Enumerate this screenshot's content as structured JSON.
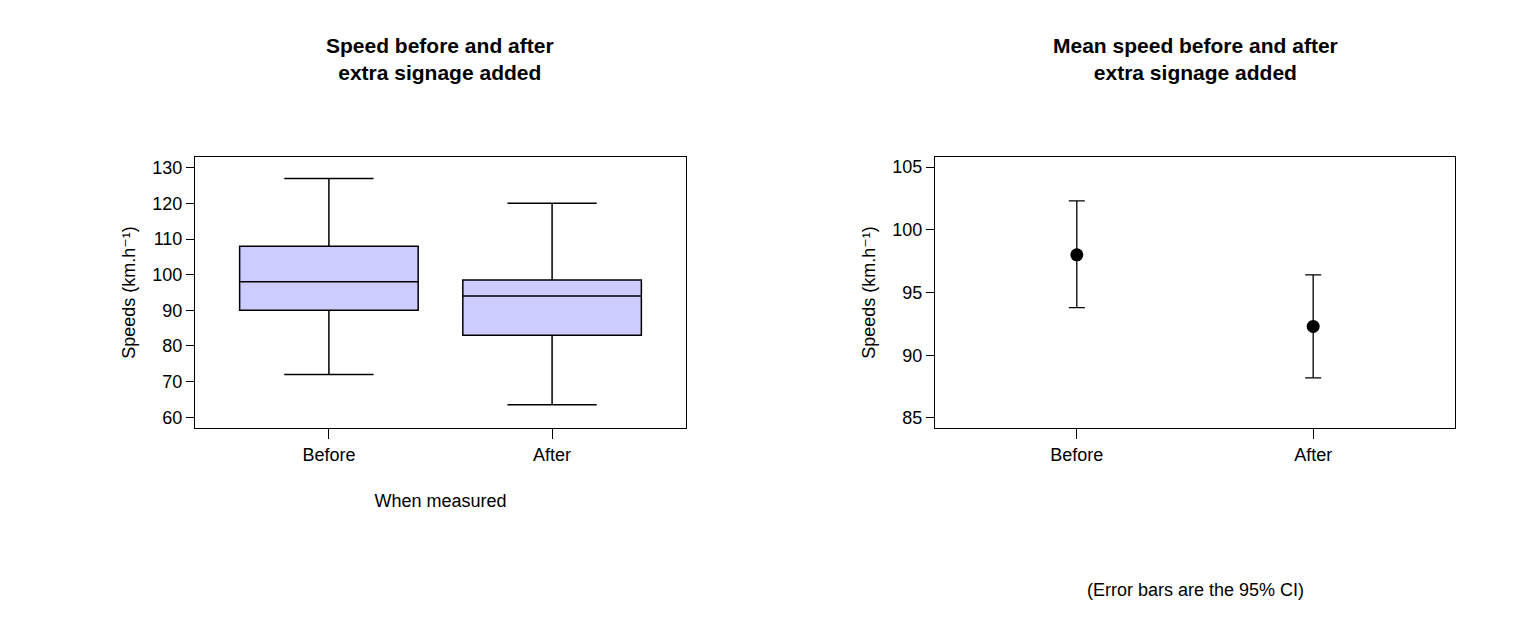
{
  "chart_data": [
    {
      "type": "box",
      "title": "Speed before and after\nextra signage added",
      "x_label": "When measured",
      "y_label": "Speeds (km.h⁻¹)",
      "categories": [
        "Before",
        "After"
      ],
      "boxes": [
        {
          "min": 72,
          "q1": 90,
          "median": 98,
          "q3": 108,
          "max": 127
        },
        {
          "min": 63.5,
          "q1": 83,
          "median": 94,
          "q3": 98.5,
          "max": 120
        }
      ],
      "color": "#ccccff",
      "ylim": [
        57,
        133
      ],
      "yticks": [
        60,
        70,
        80,
        90,
        100,
        110,
        120,
        130
      ]
    },
    {
      "type": "scatter",
      "title": "Mean speed before and after\nextra signage added",
      "y_label": "Speeds (km.h⁻¹)",
      "annotation": "(Error bars are the 95% CI)",
      "categories": [
        "Before",
        "After"
      ],
      "values": [
        98,
        92.3
      ],
      "ci_lower": [
        93.8,
        88.2
      ],
      "ci_upper": [
        102.3,
        96.4
      ],
      "color": "#000000",
      "marker": "circle",
      "ylim": [
        84.2,
        105.8
      ],
      "yticks": [
        85,
        90,
        95,
        100,
        105
      ]
    }
  ]
}
